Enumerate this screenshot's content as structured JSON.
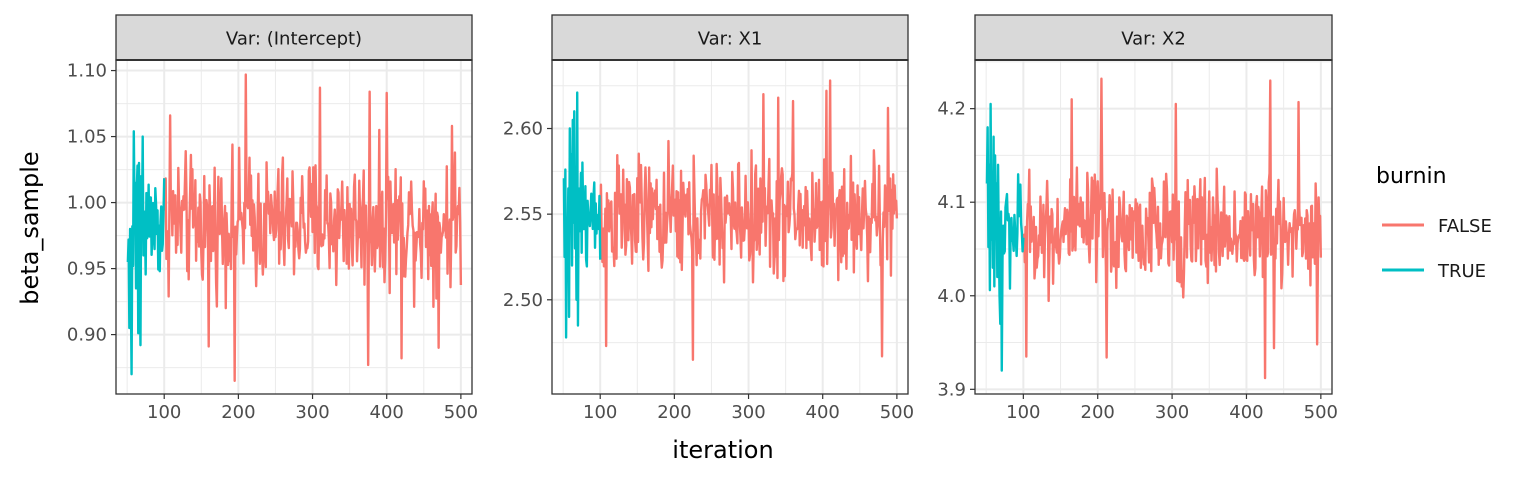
{
  "chart_data": {
    "type": "line",
    "xlabel": "iteration",
    "ylabel": "beta_sample",
    "legend": {
      "title": "burnin",
      "placement": "right",
      "entries": [
        {
          "label": "FALSE",
          "color": "#F8766D"
        },
        {
          "label": "TRUE",
          "color": "#00BFC4"
        }
      ]
    },
    "grid": true,
    "colors": {
      "FALSE": "#F8766D",
      "TRUE": "#00BFC4",
      "strip_fill": "#D9D9D9",
      "grid": "#EBEBEB",
      "frame": "#333333"
    },
    "x_ticks": [
      "100",
      "200",
      "300",
      "400",
      "500"
    ],
    "xlim": [
      35,
      515
    ],
    "burnin_cutoff": 100,
    "facets": [
      {
        "title": "Var: (Intercept)",
        "ylim": [
          0.855,
          1.108
        ],
        "y_ticks": [
          0.9,
          0.95,
          1.0,
          1.05,
          1.1
        ],
        "y_tick_labels": [
          "0.90",
          "0.95",
          "1.00",
          "1.05",
          "1.10"
        ],
        "y_center": 0.985,
        "y_spread": 0.045,
        "y_min_obs": 0.865,
        "y_max_obs": 1.097,
        "trace": {
          "x_start": 51,
          "y_start": [
            0.955,
            0.972,
            0.905,
            0.98,
            0.935,
            0.87,
            0.982,
            0.952,
            1.054,
            0.996,
            1.015,
            0.935,
            1.01,
            1.028,
            0.901,
            1.03,
            0.945,
            0.892,
            1.02,
            0.985,
            1.05,
            0.96
          ]
        },
        "highlights": [
          [
            108,
            1.066
          ],
          [
            160,
            0.891
          ],
          [
            195,
            0.865
          ],
          [
            210,
            1.097
          ],
          [
            310,
            1.087
          ],
          [
            377,
            1.084
          ],
          [
            375,
            0.877
          ],
          [
            400,
            1.083
          ],
          [
            420,
            0.882
          ],
          [
            470,
            0.89
          ],
          [
            488,
            1.058
          ]
        ]
      },
      {
        "title": "Var: X1",
        "ylim": [
          2.445,
          2.64
        ],
        "y_ticks": [
          2.5,
          2.55,
          2.6
        ],
        "y_tick_labels": [
          "2.50",
          "2.55",
          "2.60"
        ],
        "y_center": 2.548,
        "y_spread": 0.032,
        "y_min_obs": 2.465,
        "y_max_obs": 2.628,
        "trace": {
          "x_start": 51,
          "y_start": [
            2.571,
            2.525,
            2.576,
            2.478,
            2.545,
            2.53,
            2.565,
            2.49,
            2.6,
            2.56,
            2.585,
            2.52,
            2.605,
            2.545,
            2.61,
            2.53,
            2.57,
            2.5,
            2.621,
            2.485,
            2.565,
            2.54
          ]
        },
        "highlights": [
          [
            108,
            2.473
          ],
          [
            225,
            2.465
          ],
          [
            320,
            2.62
          ],
          [
            340,
            2.618
          ],
          [
            360,
            2.616
          ],
          [
            405,
            2.622
          ],
          [
            410,
            2.628
          ],
          [
            480,
            2.467
          ],
          [
            488,
            2.612
          ]
        ]
      },
      {
        "title": "Var: X2",
        "ylim": [
          3.895,
          4.252
        ],
        "y_ticks": [
          3.9,
          4.0,
          4.1,
          4.2
        ],
        "y_tick_labels": [
          "3.9",
          "4.0",
          "4.1",
          "4.2"
        ],
        "y_center": 4.07,
        "y_spread": 0.055,
        "y_min_obs": 3.91,
        "y_max_obs": 4.232,
        "trace": {
          "x_start": 51,
          "y_start": [
            4.12,
            4.18,
            4.052,
            4.14,
            4.006,
            4.205,
            4.06,
            4.11,
            4.03,
            4.17,
            4.01,
            4.15,
            4.07,
            4.12,
            4.02,
            4.14,
            4.06,
            4.0,
            3.97,
            4.09,
            3.92,
            4.04
          ]
        },
        "highlights": [
          [
            104,
            3.935
          ],
          [
            165,
            4.21
          ],
          [
            205,
            4.232
          ],
          [
            212,
            3.934
          ],
          [
            305,
            4.205
          ],
          [
            425,
            3.912
          ],
          [
            432,
            4.23
          ],
          [
            437,
            3.944
          ],
          [
            470,
            4.207
          ],
          [
            495,
            3.948
          ]
        ]
      }
    ]
  }
}
